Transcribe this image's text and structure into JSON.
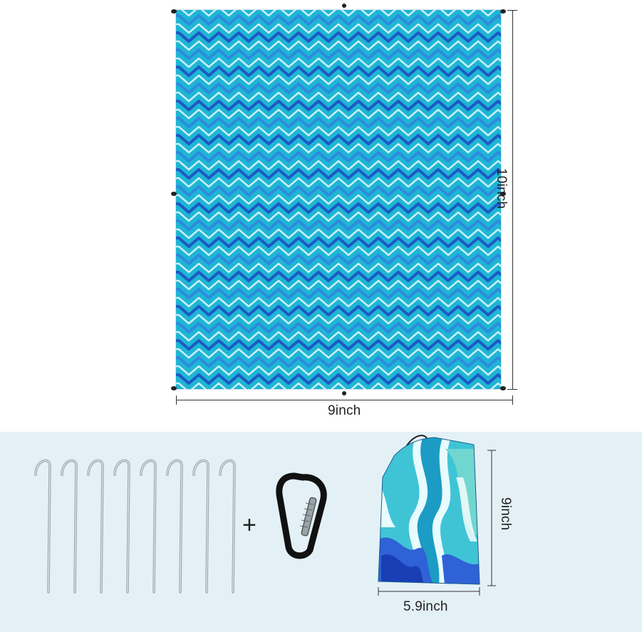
{
  "mat": {
    "width_label": "9inch",
    "height_label": "10inch",
    "colors": {
      "base": "#1fb5d4",
      "wave_dark": "#1d4fc4",
      "wave_light": "#d9f6ff",
      "wave_mid": "#2f86e0"
    }
  },
  "accessories": {
    "stakes_count": 8,
    "plus_symbol": "+",
    "carabiner_color": "#111111"
  },
  "pouch": {
    "width_label": "5.9inch",
    "height_label": "9inch"
  },
  "colors": {
    "bottom_panel": "#e3f1f7"
  }
}
